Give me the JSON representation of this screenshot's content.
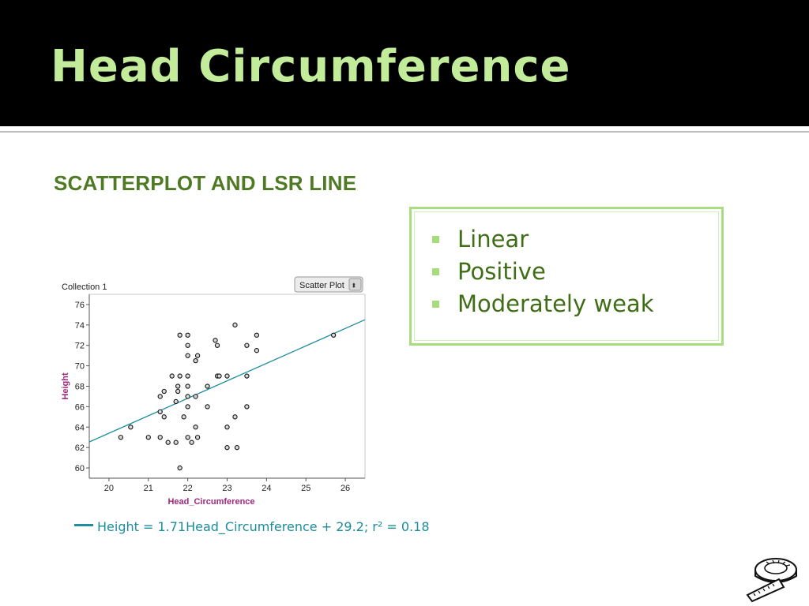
{
  "slide": {
    "title": "Head Circumference",
    "subheading": "SCATTERPLOT AND LSR LINE",
    "bullets": [
      "Linear",
      "Positive",
      "Moderately weak"
    ]
  },
  "colors": {
    "title": "#c3ec9a",
    "accent_green": "#4e7a24",
    "bullet_square": "#a6dc7a",
    "box_border": "#a9dd7f",
    "regression_line": "#1f8f9e",
    "axis_label": "#a0287f"
  },
  "chart_data": {
    "type": "scatter",
    "collection_label": "Collection 1",
    "plot_type_menu": "Scatter Plot",
    "xlabel": "Head_Circumference",
    "ylabel": "Height",
    "xlim": [
      19.5,
      26.5
    ],
    "ylim": [
      59,
      77
    ],
    "x_ticks": [
      "20",
      "21",
      "22",
      "23",
      "24",
      "25",
      "26"
    ],
    "y_ticks": [
      "60",
      "62",
      "64",
      "66",
      "68",
      "70",
      "72",
      "74",
      "76"
    ],
    "points": [
      [
        20.3,
        63
      ],
      [
        20.55,
        64
      ],
      [
        21.0,
        63
      ],
      [
        21.3,
        63
      ],
      [
        21.3,
        65.5
      ],
      [
        21.3,
        67
      ],
      [
        21.4,
        67.5
      ],
      [
        21.4,
        65
      ],
      [
        21.5,
        62.5
      ],
      [
        21.6,
        69
      ],
      [
        21.7,
        62.5
      ],
      [
        21.7,
        66.5
      ],
      [
        21.75,
        68
      ],
      [
        21.75,
        67.5
      ],
      [
        21.8,
        69
      ],
      [
        21.8,
        73
      ],
      [
        21.8,
        60
      ],
      [
        21.9,
        65
      ],
      [
        22.0,
        73
      ],
      [
        22.0,
        72
      ],
      [
        22.0,
        71
      ],
      [
        22.0,
        69
      ],
      [
        22.0,
        68
      ],
      [
        22.0,
        67
      ],
      [
        22.0,
        66
      ],
      [
        22.0,
        63
      ],
      [
        22.1,
        62.5
      ],
      [
        22.2,
        64
      ],
      [
        22.2,
        67
      ],
      [
        22.2,
        70.5
      ],
      [
        22.25,
        71
      ],
      [
        22.25,
        63
      ],
      [
        22.5,
        68
      ],
      [
        22.5,
        66
      ],
      [
        22.7,
        72.5
      ],
      [
        22.75,
        72
      ],
      [
        22.75,
        69
      ],
      [
        22.8,
        69
      ],
      [
        23.0,
        69
      ],
      [
        23.0,
        64
      ],
      [
        23.0,
        62
      ],
      [
        23.2,
        65
      ],
      [
        23.2,
        74
      ],
      [
        23.25,
        62
      ],
      [
        23.5,
        72
      ],
      [
        23.5,
        69
      ],
      [
        23.5,
        66
      ],
      [
        23.75,
        73
      ],
      [
        23.75,
        71.5
      ],
      [
        25.7,
        73
      ]
    ],
    "regression": {
      "slope": 1.71,
      "intercept": 29.2,
      "equation_text": "Height = 1.71Head_Circumference + 29.2; r² = 0.18"
    },
    "grid": false,
    "legend": "none"
  }
}
